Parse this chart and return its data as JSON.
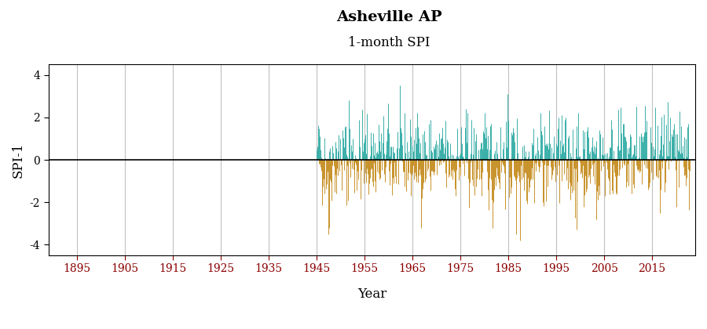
{
  "title": "Asheville AP",
  "subtitle": "1-month SPI",
  "ylabel": "SPI-1",
  "xlabel": "Year",
  "color_positive": "#3aafa9",
  "color_negative": "#c8922a",
  "color_zero_line": "#000000",
  "ylim": [
    -4.5,
    4.5
  ],
  "yticks": [
    -4,
    -2,
    0,
    2,
    4
  ],
  "xlim": [
    1889,
    2024
  ],
  "xticks": [
    1895,
    1905,
    1915,
    1925,
    1935,
    1945,
    1955,
    1965,
    1975,
    1985,
    1995,
    2005,
    2015
  ],
  "data_start_year": 1945,
  "data_end_year": 2022,
  "background_color": "#ffffff",
  "grid_color": "#c0c0c0",
  "title_fontsize": 14,
  "subtitle_fontsize": 12,
  "label_fontsize": 12,
  "tick_fontsize": 10,
  "tick_color": "#8B0000"
}
